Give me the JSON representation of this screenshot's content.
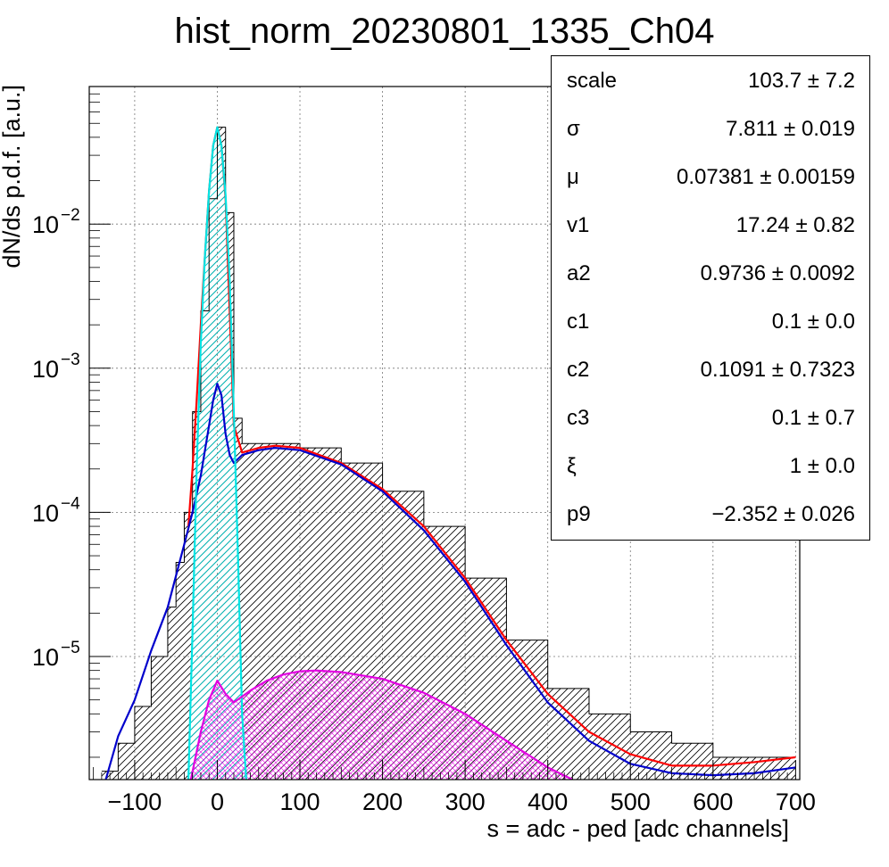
{
  "chart_data": {
    "type": "line",
    "title": "hist_norm_20230801_1335_Ch04",
    "xlabel": "s = adc - ped [adc channels]",
    "ylabel": "dN/ds p.d.f. [a.u.]",
    "xlim": [
      -155,
      705
    ],
    "ylim": [
      1.4e-06,
      0.09
    ],
    "yscale": "log",
    "grid": true,
    "x_ticks": [
      -100,
      0,
      100,
      200,
      300,
      400,
      500,
      600,
      700
    ],
    "y_ticks": [
      {
        "value": 1e-05,
        "label": "10",
        "exp": "−5"
      },
      {
        "value": 0.0001,
        "label": "10",
        "exp": "−4"
      },
      {
        "value": 0.001,
        "label": "10",
        "exp": "−3"
      },
      {
        "value": 0.01,
        "label": "10",
        "exp": "−2"
      }
    ],
    "series": [
      {
        "color": "#000000",
        "style": "histogram",
        "x": [
          -140,
          -120,
          -100,
          -80,
          -60,
          -50,
          -40,
          -30,
          -20,
          -10,
          0,
          10,
          20,
          30,
          50,
          80,
          100,
          150,
          200,
          250,
          300,
          350,
          400,
          450,
          500,
          550,
          600,
          650,
          700
        ],
        "values": [
          1.6e-06,
          2.5e-06,
          4.5e-06,
          1e-05,
          2.2e-05,
          4.5e-05,
          0.0001,
          0.0005,
          0.0025,
          0.015,
          0.047,
          0.012,
          0.00045,
          0.0003,
          0.0003,
          0.0003,
          0.00028,
          0.00022,
          0.00014,
          8e-05,
          3.5e-05,
          1.3e-05,
          6e-06,
          4e-06,
          3e-06,
          2.5e-06,
          2e-06,
          2e-06,
          2e-06
        ]
      },
      {
        "color": "#ff0000",
        "style": "line",
        "x": [
          -35,
          -30,
          -25,
          -20,
          -15,
          -10,
          -5,
          0,
          5,
          10,
          15,
          20,
          30,
          50,
          70,
          100,
          150,
          200,
          250,
          300,
          350,
          400,
          450,
          500,
          550,
          600,
          650,
          700
        ],
        "values": [
          8e-05,
          0.0002,
          0.0006,
          0.002,
          0.006,
          0.017,
          0.035,
          0.047,
          0.035,
          0.015,
          0.0025,
          0.0004,
          0.00026,
          0.00028,
          0.00029,
          0.00028,
          0.00022,
          0.000145,
          8e-05,
          3.5e-05,
          1.3e-05,
          5.5e-06,
          3e-06,
          2.1e-06,
          1.75e-06,
          1.75e-06,
          1.85e-06,
          2e-06
        ]
      },
      {
        "color": "#0000cc",
        "style": "line",
        "x": [
          -135,
          -120,
          -100,
          -80,
          -60,
          -40,
          -30,
          -20,
          -10,
          -5,
          0,
          5,
          10,
          15,
          20,
          30,
          50,
          70,
          100,
          150,
          200,
          250,
          300,
          350,
          400,
          450,
          500,
          550,
          600,
          650,
          700
        ],
        "values": [
          1.4e-06,
          2.8e-06,
          5e-06,
          1.1e-05,
          2.2e-05,
          6e-05,
          0.0001,
          0.00018,
          0.0004,
          0.0006,
          0.00078,
          0.00065,
          0.00035,
          0.00025,
          0.00022,
          0.00025,
          0.00027,
          0.00028,
          0.00027,
          0.000215,
          0.00014,
          7.5e-05,
          3.3e-05,
          1.2e-05,
          4.8e-06,
          2.6e-06,
          1.8e-06,
          1.55e-06,
          1.5e-06,
          1.55e-06,
          1.7e-06
        ]
      },
      {
        "color": "#00e5e5",
        "style": "line",
        "x": [
          -35,
          -30,
          -25,
          -20,
          -15,
          -10,
          -5,
          0,
          5,
          10,
          15,
          20,
          25,
          30,
          35
        ],
        "values": [
          1.4e-06,
          1.5e-05,
          0.0002,
          0.0015,
          0.006,
          0.017,
          0.035,
          0.047,
          0.035,
          0.016,
          0.004,
          0.0005,
          5e-05,
          4e-06,
          1.4e-06
        ]
      },
      {
        "color": "#e100e1",
        "style": "line",
        "x": [
          -32,
          -20,
          -10,
          0,
          10,
          20,
          40,
          60,
          80,
          100,
          120,
          150,
          200,
          250,
          300,
          350,
          400,
          430
        ],
        "values": [
          1.4e-06,
          3e-06,
          5e-06,
          6.8e-06,
          5.5e-06,
          4.8e-06,
          5.8e-06,
          6.8e-06,
          7.5e-06,
          7.9e-06,
          8e-06,
          7.8e-06,
          7e-06,
          5.6e-06,
          4e-06,
          2.6e-06,
          1.7e-06,
          1.4e-06
        ]
      }
    ]
  },
  "stats": [
    {
      "name": "scale",
      "value": "103.7 ± 7.2"
    },
    {
      "name": "σ",
      "value": "7.811 ± 0.019"
    },
    {
      "name": "μ",
      "value": "0.07381 ± 0.00159"
    },
    {
      "name": "v1",
      "value": "17.24 ± 0.82"
    },
    {
      "name": "a2",
      "value": "0.9736 ± 0.0092"
    },
    {
      "name": "c1",
      "value": "0.1 ± 0.0"
    },
    {
      "name": "c2",
      "value": "0.1091 ± 0.7323"
    },
    {
      "name": "c3",
      "value": "0.1 ± 0.7"
    },
    {
      "name": "ξ",
      "value": "1 ± 0.0"
    },
    {
      "name": "p9",
      "value": "−2.352 ± 0.026"
    }
  ]
}
